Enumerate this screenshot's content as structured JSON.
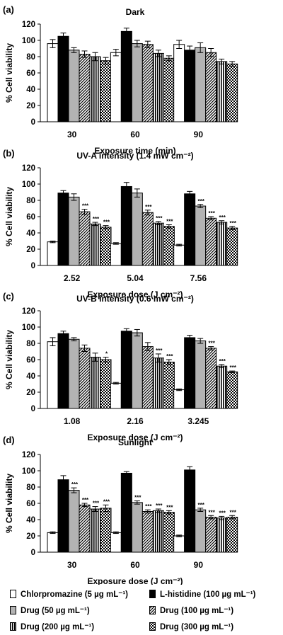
{
  "chart_data": [
    {
      "panel_label": "(a)",
      "type": "bar",
      "title": "Dark",
      "xlabel": "Exposure time (min)",
      "ylabel": "% Cell viability",
      "ylim": [
        0,
        120
      ],
      "yticks": [
        "0",
        "20",
        "40",
        "60",
        "80",
        "100",
        "120"
      ],
      "categories": [
        "30",
        "60",
        "90"
      ],
      "series": [
        {
          "values": [
            96,
            85,
            95
          ],
          "errors": [
            5,
            4,
            5
          ],
          "sig": [
            "",
            "",
            ""
          ]
        },
        {
          "values": [
            105,
            111,
            88
          ],
          "errors": [
            4,
            4,
            5
          ],
          "sig": [
            "",
            "",
            ""
          ]
        },
        {
          "values": [
            88,
            96,
            91
          ],
          "errors": [
            3,
            4,
            6
          ],
          "sig": [
            "",
            "",
            ""
          ]
        },
        {
          "values": [
            83,
            95,
            85
          ],
          "errors": [
            4,
            4,
            5
          ],
          "sig": [
            "",
            "",
            ""
          ]
        },
        {
          "values": [
            80,
            84,
            74
          ],
          "errors": [
            5,
            4,
            3
          ],
          "sig": [
            "",
            "",
            ""
          ]
        },
        {
          "values": [
            75,
            78,
            71
          ],
          "errors": [
            4,
            3,
            3
          ],
          "sig": [
            "",
            "",
            ""
          ]
        }
      ]
    },
    {
      "panel_label": "(b)",
      "type": "bar",
      "title": "UV-A intensity (1.4 mW cm⁻²)",
      "xlabel": "Exposure dose (J cm⁻²)",
      "ylabel": "% Cell viability",
      "ylim": [
        0,
        120
      ],
      "yticks": [
        "0",
        "20",
        "40",
        "60",
        "80",
        "100",
        "120"
      ],
      "categories": [
        "2.52",
        "5.04",
        "7.56"
      ],
      "series": [
        {
          "values": [
            29,
            27,
            25
          ],
          "errors": [
            1,
            1,
            1
          ],
          "sig": [
            "",
            "",
            ""
          ]
        },
        {
          "values": [
            89,
            97,
            88
          ],
          "errors": [
            3,
            5,
            3
          ],
          "sig": [
            "",
            "",
            ""
          ]
        },
        {
          "values": [
            84,
            89,
            73
          ],
          "errors": [
            4,
            5,
            2
          ],
          "sig": [
            "",
            "",
            "***"
          ]
        },
        {
          "values": [
            66,
            65,
            58
          ],
          "errors": [
            3,
            3,
            2
          ],
          "sig": [
            "***",
            "***",
            "***"
          ]
        },
        {
          "values": [
            51,
            52,
            53
          ],
          "errors": [
            2,
            2,
            2
          ],
          "sig": [
            "***",
            "***",
            "***"
          ]
        },
        {
          "values": [
            47,
            48,
            46
          ],
          "errors": [
            2,
            2,
            2
          ],
          "sig": [
            "***",
            "***",
            "***"
          ]
        }
      ]
    },
    {
      "panel_label": "(c)",
      "type": "bar",
      "title": "UV-B intensity (0.6 mW cm⁻²)",
      "xlabel": "Exposure dose (J cm⁻²)",
      "ylabel": "% Cell viability",
      "ylim": [
        0,
        120
      ],
      "yticks": [
        "0",
        "20",
        "40",
        "60",
        "80",
        "100",
        "120"
      ],
      "categories": [
        "1.08",
        "2.16",
        "3.245"
      ],
      "series": [
        {
          "values": [
            82,
            31,
            23
          ],
          "errors": [
            5,
            1,
            1
          ],
          "sig": [
            "",
            "",
            ""
          ]
        },
        {
          "values": [
            92,
            95,
            87
          ],
          "errors": [
            3,
            3,
            3
          ],
          "sig": [
            "",
            "",
            ""
          ]
        },
        {
          "values": [
            85,
            93,
            83
          ],
          "errors": [
            2,
            4,
            3
          ],
          "sig": [
            "",
            "",
            ""
          ]
        },
        {
          "values": [
            74,
            76,
            74
          ],
          "errors": [
            4,
            5,
            2
          ],
          "sig": [
            "",
            "",
            "***"
          ]
        },
        {
          "values": [
            63,
            62,
            52
          ],
          "errors": [
            5,
            5,
            2
          ],
          "sig": [
            "",
            "***",
            "***"
          ]
        },
        {
          "values": [
            60,
            57,
            45
          ],
          "errors": [
            3,
            3,
            1
          ],
          "sig": [
            "*",
            "***",
            "***"
          ]
        }
      ]
    },
    {
      "panel_label": "(d)",
      "type": "bar",
      "title": "Sunlight",
      "xlabel": "Exposure dose (J cm⁻²)",
      "ylabel": "% Cell viability",
      "ylim": [
        0,
        120
      ],
      "yticks": [
        "0",
        "20",
        "40",
        "60",
        "80",
        "100",
        "120"
      ],
      "categories": [
        "30",
        "60",
        "90"
      ],
      "series": [
        {
          "values": [
            24,
            24,
            20
          ],
          "errors": [
            1,
            1,
            1
          ],
          "sig": [
            "",
            "",
            ""
          ]
        },
        {
          "values": [
            89,
            97,
            101
          ],
          "errors": [
            5,
            2,
            4
          ],
          "sig": [
            "",
            "",
            ""
          ]
        },
        {
          "values": [
            76,
            61,
            52
          ],
          "errors": [
            3,
            2,
            2
          ],
          "sig": [
            "***",
            "***",
            "***"
          ]
        },
        {
          "values": [
            58,
            50,
            43
          ],
          "errors": [
            2,
            2,
            2
          ],
          "sig": [
            "***",
            "***",
            "***"
          ]
        },
        {
          "values": [
            53,
            51,
            42
          ],
          "errors": [
            3,
            2,
            2
          ],
          "sig": [
            "***",
            "***",
            "***"
          ]
        },
        {
          "values": [
            54,
            49,
            43
          ],
          "errors": [
            4,
            2,
            2
          ],
          "sig": [
            "***",
            "***",
            "***"
          ]
        }
      ]
    }
  ],
  "legend": {
    "placement": "bottom",
    "items": [
      {
        "label": "Chlorpromazine (5 µg mL⁻¹)",
        "pattern": "white"
      },
      {
        "label": "L-histidine (100 µg mL⁻¹)",
        "pattern": "black"
      },
      {
        "label": "Drug (50 µg mL⁻¹)",
        "pattern": "gray"
      },
      {
        "label": "Drug (100 µg mL⁻¹)",
        "pattern": "diagonal-stripes"
      },
      {
        "label": "Drug (200 µg mL⁻¹)",
        "pattern": "vertical-stripes"
      },
      {
        "label": "Drug (300 µg mL⁻¹)",
        "pattern": "checkerboard"
      }
    ]
  }
}
